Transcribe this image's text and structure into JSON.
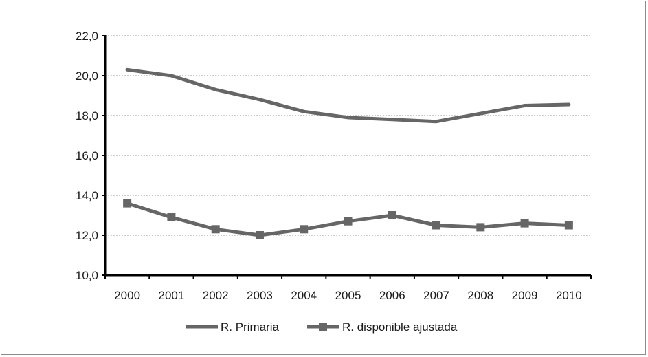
{
  "chart_data": {
    "type": "line",
    "title": "",
    "xlabel": "",
    "ylabel": "",
    "categories": [
      "2000",
      "2001",
      "2002",
      "2003",
      "2004",
      "2005",
      "2006",
      "2007",
      "2008",
      "2009",
      "2010"
    ],
    "ylim": [
      10.0,
      22.0
    ],
    "yticks": [
      "10,0",
      "12,0",
      "14,0",
      "16,0",
      "18,0",
      "20,0",
      "22,0"
    ],
    "grid": true,
    "legend_position": "bottom",
    "series": [
      {
        "name": "R. Primaria",
        "marker": "none",
        "color": "#666666",
        "values": [
          20.3,
          20.0,
          19.3,
          18.8,
          18.2,
          17.9,
          17.8,
          17.7,
          18.1,
          18.5,
          18.55
        ]
      },
      {
        "name": "R. disponible ajustada",
        "marker": "square",
        "color": "#666666",
        "values": [
          13.6,
          12.9,
          12.3,
          12.0,
          12.3,
          12.7,
          13.0,
          12.5,
          12.4,
          12.6,
          12.5
        ]
      }
    ]
  }
}
